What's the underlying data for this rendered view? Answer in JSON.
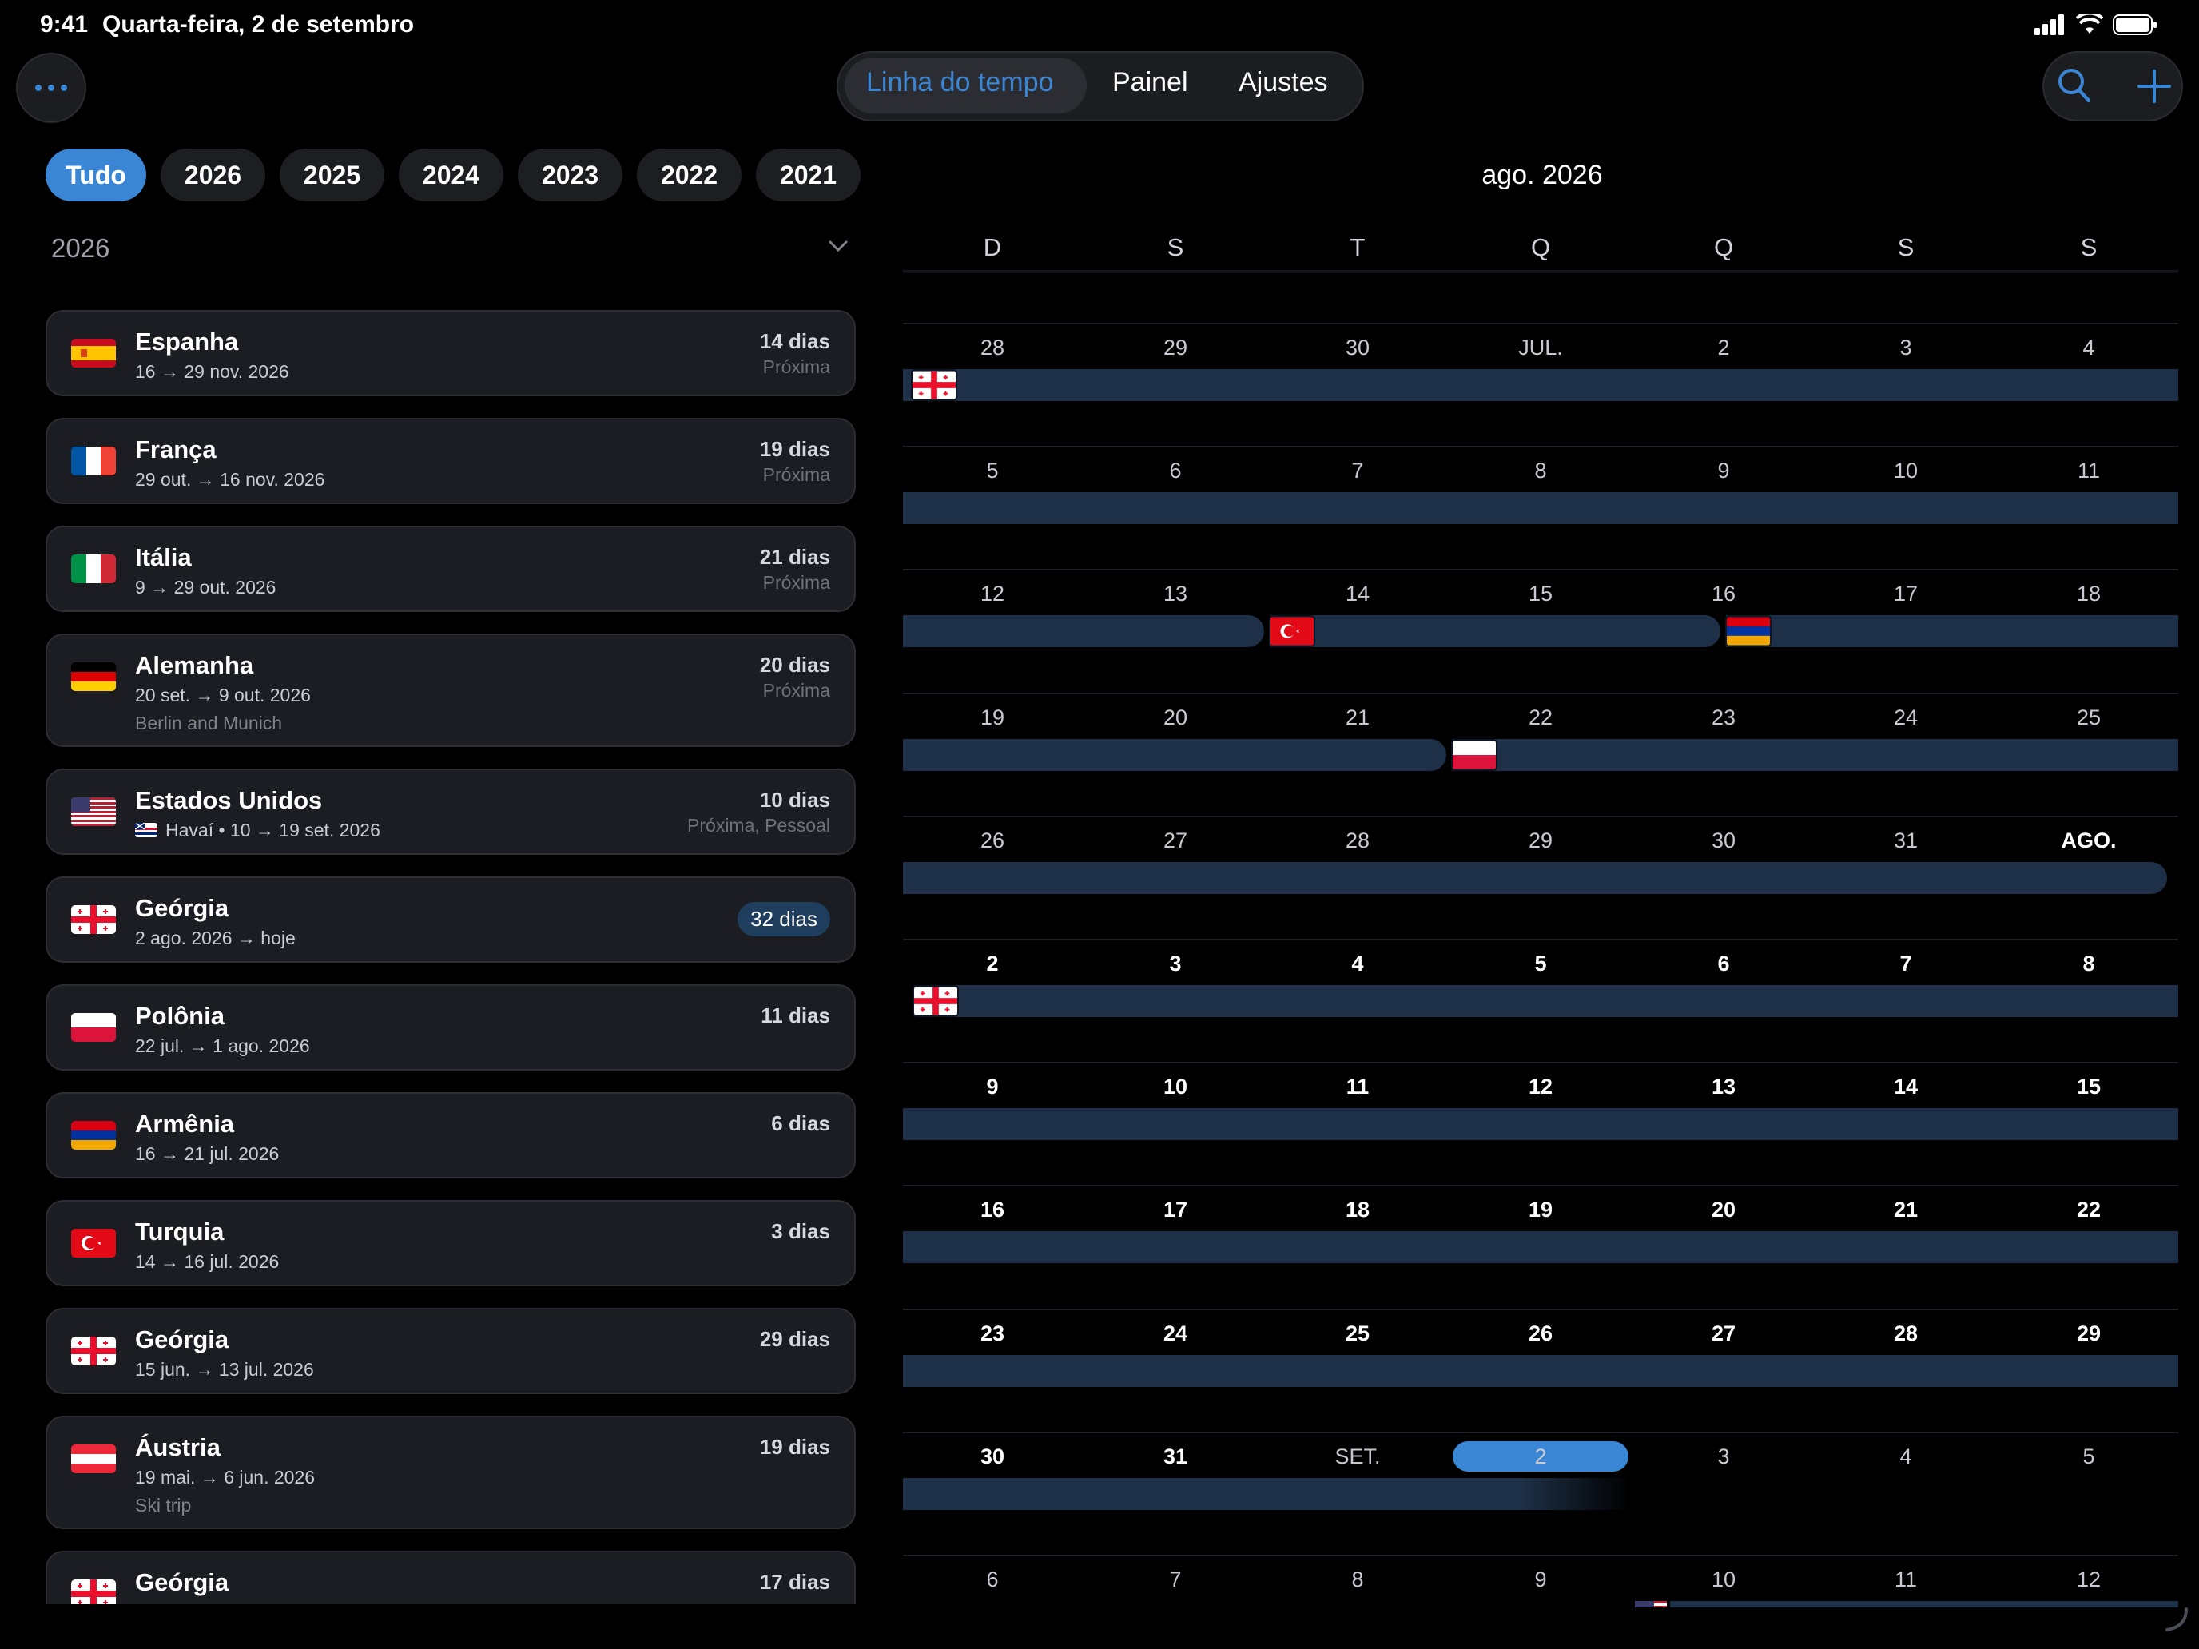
{
  "status": {
    "time": "9:41",
    "date": "Quarta-feira, 2 de setembro"
  },
  "tabs": {
    "timeline": "Linha do tempo",
    "panel": "Painel",
    "settings": "Ajustes"
  },
  "filters": [
    "Tudo",
    "2026",
    "2025",
    "2024",
    "2023",
    "2022",
    "2021"
  ],
  "section": {
    "year": "2026"
  },
  "trips": [
    {
      "country": "Espanha",
      "dates": "16 → 29 nov. 2026",
      "duration": "14 dias",
      "tag": "Próxima",
      "note": "",
      "flag": "spain"
    },
    {
      "country": "França",
      "dates": "29 out. → 16 nov. 2026",
      "duration": "19 dias",
      "tag": "Próxima",
      "note": "",
      "flag": "france"
    },
    {
      "country": "Itália",
      "dates": "9 → 29 out. 2026",
      "duration": "21 dias",
      "tag": "Próxima",
      "note": "",
      "flag": "italy"
    },
    {
      "country": "Alemanha",
      "dates": "20 set. → 9 out. 2026",
      "duration": "20 dias",
      "tag": "Próxima",
      "note": "Berlin and Munich",
      "flag": "germany"
    },
    {
      "country": "Estados Unidos",
      "dates": "Havaí • 10 → 19 set. 2026",
      "duration": "10 dias",
      "tag": "Próxima, Pessoal",
      "note": "",
      "flag": "usa"
    },
    {
      "country": "Geórgia",
      "dates": "2 ago. 2026 → hoje",
      "duration": "32 dias",
      "tag": "",
      "note": "",
      "flag": "georgia"
    },
    {
      "country": "Polônia",
      "dates": "22 jul. → 1 ago. 2026",
      "duration": "11 dias",
      "tag": "",
      "note": "",
      "flag": "poland"
    },
    {
      "country": "Armênia",
      "dates": "16 → 21 jul. 2026",
      "duration": "6 dias",
      "tag": "",
      "note": "",
      "flag": "armenia"
    },
    {
      "country": "Turquia",
      "dates": "14 → 16 jul. 2026",
      "duration": "3 dias",
      "tag": "",
      "note": "",
      "flag": "turkey"
    },
    {
      "country": "Geórgia",
      "dates": "15 jun. → 13 jul. 2026",
      "duration": "29 dias",
      "tag": "",
      "note": "",
      "flag": "georgia"
    },
    {
      "country": "Áustria",
      "dates": "19 mai. → 6 jun. 2026",
      "duration": "19 dias",
      "tag": "",
      "note": "Ski trip",
      "flag": "austria"
    },
    {
      "country": "Geórgia",
      "dates": "",
      "duration": "17 dias",
      "tag": "",
      "note": "",
      "flag": "georgia"
    }
  ],
  "calendar": {
    "title": "ago. 2026",
    "weekdays": [
      "D",
      "S",
      "T",
      "Q",
      "Q",
      "S",
      "S"
    ],
    "weeks": [
      [
        "28",
        "29",
        "30",
        "JUL.",
        "2",
        "3",
        "4"
      ],
      [
        "5",
        "6",
        "7",
        "8",
        "9",
        "10",
        "11"
      ],
      [
        "12",
        "13",
        "14",
        "15",
        "16",
        "17",
        "18"
      ],
      [
        "19",
        "20",
        "21",
        "22",
        "23",
        "24",
        "25"
      ],
      [
        "26",
        "27",
        "28",
        "29",
        "30",
        "31",
        "AGO."
      ],
      [
        "2",
        "3",
        "4",
        "5",
        "6",
        "7",
        "8"
      ],
      [
        "9",
        "10",
        "11",
        "12",
        "13",
        "14",
        "15"
      ],
      [
        "16",
        "17",
        "18",
        "19",
        "20",
        "21",
        "22"
      ],
      [
        "23",
        "24",
        "25",
        "26",
        "27",
        "28",
        "29"
      ],
      [
        "30",
        "31",
        "SET.",
        "2",
        "3",
        "4",
        "5"
      ],
      [
        "6",
        "7",
        "8",
        "9",
        "10",
        "11",
        "12"
      ]
    ]
  },
  "colors": {
    "accent": "#3a86d4",
    "trip_bar": "#1e3047",
    "card_bg": "#1c1d22"
  }
}
